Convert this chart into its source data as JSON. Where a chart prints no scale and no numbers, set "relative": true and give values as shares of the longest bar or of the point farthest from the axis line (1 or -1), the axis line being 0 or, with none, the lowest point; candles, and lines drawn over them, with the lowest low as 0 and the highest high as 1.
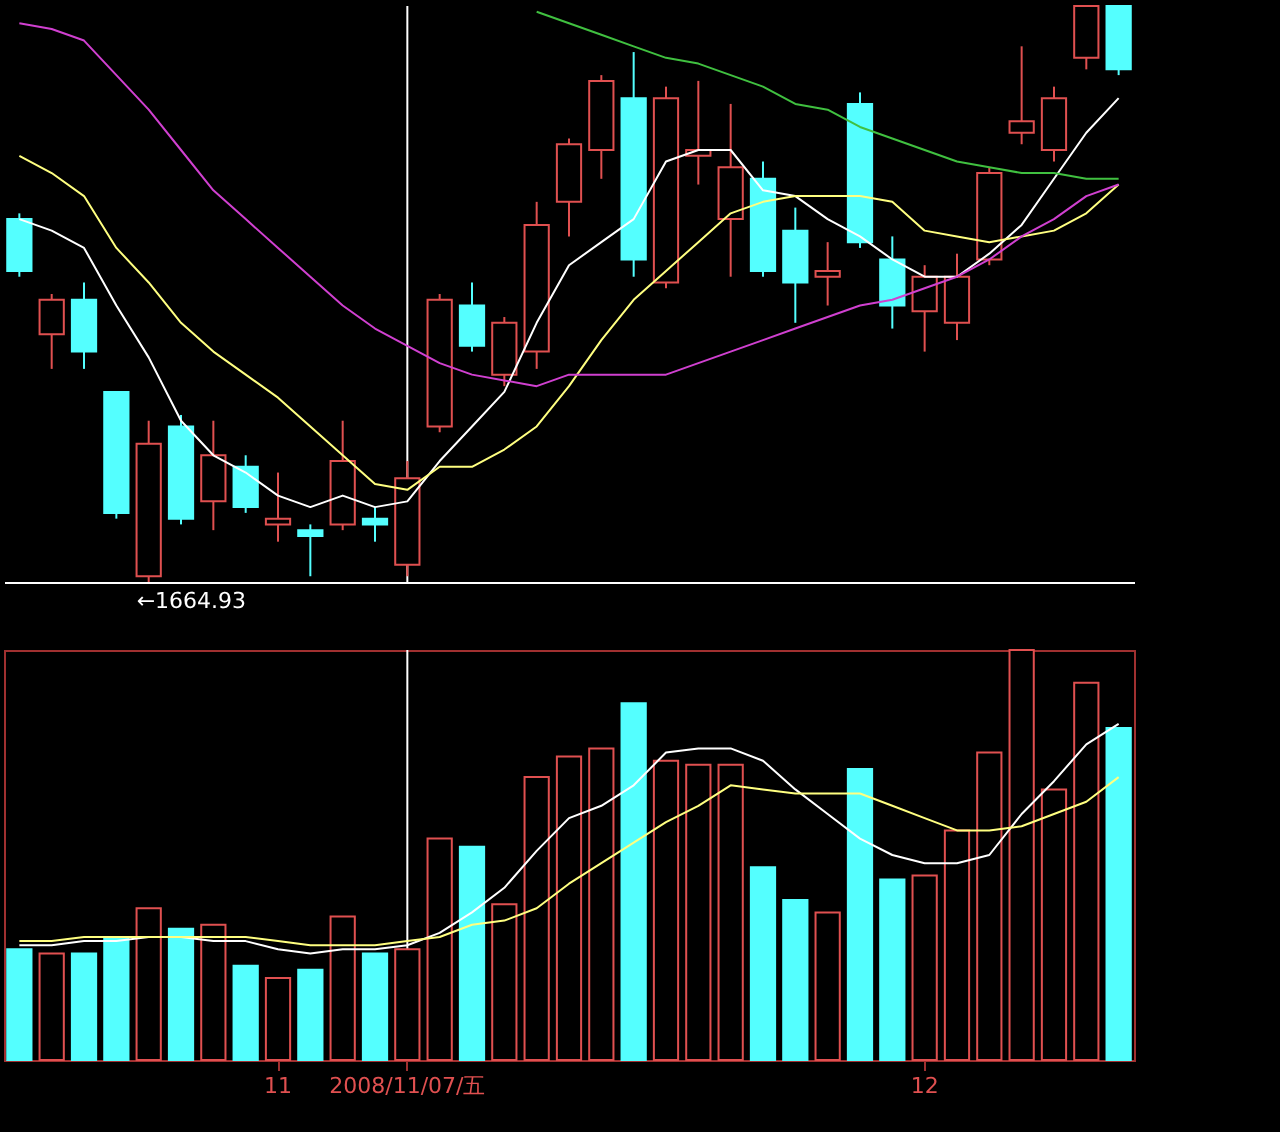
{
  "chart_data": [
    {
      "type": "candlestick",
      "relative": true,
      "tick_labels": false,
      "categories": [
        null,
        null,
        null,
        null,
        null,
        null,
        null,
        null,
        "11",
        null,
        null,
        null,
        "2008/11/07/五",
        null,
        null,
        null,
        null,
        null,
        null,
        null,
        null,
        null,
        null,
        null,
        null,
        null,
        null,
        null,
        "12",
        null,
        null,
        null,
        null,
        null,
        null
      ],
      "ohlc": [
        [
          0.63,
          0.64,
          0.53,
          0.54
        ],
        [
          0.43,
          0.5,
          0.37,
          0.49
        ],
        [
          0.49,
          0.52,
          0.37,
          0.4
        ],
        [
          0.33,
          0.33,
          0.11,
          0.12
        ],
        [
          0.01,
          0.28,
          0,
          0.24
        ],
        [
          0.27,
          0.29,
          0.1,
          0.11
        ],
        [
          0.14,
          0.28,
          0.09,
          0.22
        ],
        [
          0.2,
          0.22,
          0.12,
          0.13
        ],
        [
          0.1,
          0.19,
          0.07,
          0.11
        ],
        [
          0.09,
          0.1,
          0.01,
          0.08
        ],
        [
          0.1,
          0.28,
          0.09,
          0.21
        ],
        [
          0.11,
          0.13,
          0.07,
          0.1
        ],
        [
          0.03,
          0.21,
          0.01,
          0.18
        ],
        [
          0.27,
          0.5,
          0.26,
          0.49
        ],
        [
          0.48,
          0.52,
          0.4,
          0.41
        ],
        [
          0.36,
          0.46,
          0.34,
          0.45
        ],
        [
          0.4,
          0.66,
          0.37,
          0.62
        ],
        [
          0.66,
          0.77,
          0.6,
          0.76
        ],
        [
          0.75,
          0.88,
          0.7,
          0.87
        ],
        [
          0.84,
          0.92,
          0.53,
          0.56
        ],
        [
          0.52,
          0.86,
          0.51,
          0.84
        ],
        [
          0.74,
          0.87,
          0.69,
          0.75
        ],
        [
          0.63,
          0.83,
          0.53,
          0.72
        ],
        [
          0.7,
          0.73,
          0.53,
          0.54
        ],
        [
          0.61,
          0.65,
          0.45,
          0.52
        ],
        [
          0.53,
          0.59,
          0.48,
          0.54
        ],
        [
          0.83,
          0.85,
          0.58,
          0.59
        ],
        [
          0.56,
          0.6,
          0.44,
          0.48
        ],
        [
          0.47,
          0.55,
          0.4,
          0.53
        ],
        [
          0.45,
          0.57,
          0.42,
          0.53
        ],
        [
          0.56,
          0.72,
          0.55,
          0.71
        ],
        [
          0.78,
          0.93,
          0.76,
          0.8
        ],
        [
          0.75,
          0.86,
          0.73,
          0.84
        ],
        [
          0.91,
          1,
          0.89,
          1
        ],
        [
          1,
          1,
          0.88,
          0.89
        ]
      ],
      "colors": [
        "#54ffff",
        "#e05050",
        "#54ffff",
        "#54ffff",
        "#e05050",
        "#54ffff",
        "#e05050",
        "#54ffff",
        "#e05050",
        "#54ffff",
        "#e05050",
        "#54ffff",
        "#e05050",
        "#e05050",
        "#54ffff",
        "#e05050",
        "#e05050",
        "#e05050",
        "#e05050",
        "#54ffff",
        "#e05050",
        "#e05050",
        "#e05050",
        "#54ffff",
        "#54ffff",
        "#e05050",
        "#54ffff",
        "#54ffff",
        "#e05050",
        "#e05050",
        "#e05050",
        "#e05050",
        "#e05050",
        "#e05050",
        "#54ffff"
      ],
      "series": [
        {
          "type": "line",
          "color": "#ffffff",
          "values": [
            0.63,
            0.61,
            0.58,
            0.48,
            0.39,
            0.28,
            0.22,
            0.19,
            0.15,
            0.13,
            0.15,
            0.13,
            0.14,
            0.21,
            0.27,
            0.33,
            0.45,
            0.55,
            0.59,
            0.63,
            0.73,
            0.75,
            0.75,
            0.68,
            0.67,
            0.63,
            0.6,
            0.56,
            0.53,
            0.53,
            0.57,
            0.62,
            0.7,
            0.78,
            0.84
          ]
        },
        {
          "type": "line",
          "color": "#ffff80",
          "values": [
            0.74,
            0.71,
            0.67,
            0.58,
            0.52,
            0.45,
            0.4,
            0.36,
            0.32,
            0.27,
            0.22,
            0.17,
            0.16,
            0.2,
            0.2,
            0.23,
            0.27,
            0.34,
            0.42,
            0.49,
            0.54,
            0.59,
            0.64,
            0.66,
            0.67,
            0.67,
            0.67,
            0.66,
            0.61,
            0.6,
            0.59,
            0.6,
            0.61,
            0.64,
            0.69
          ]
        },
        {
          "type": "line",
          "color": "#d040d0",
          "values": [
            0.97,
            0.96,
            0.94,
            0.88,
            0.82,
            0.75,
            0.68,
            0.63,
            0.58,
            0.53,
            0.48,
            0.44,
            0.41,
            0.38,
            0.36,
            0.35,
            0.34,
            0.36,
            0.36,
            0.36,
            0.36,
            0.38,
            0.4,
            0.42,
            0.44,
            0.46,
            0.48,
            0.49,
            0.51,
            0.53,
            0.56,
            0.6,
            0.63,
            0.67,
            0.69
          ]
        },
        {
          "type": "line",
          "color": "#40c040",
          "values": [
            null,
            null,
            null,
            null,
            null,
            null,
            null,
            null,
            null,
            null,
            null,
            null,
            null,
            null,
            null,
            null,
            0.99,
            0.97,
            0.95,
            0.93,
            0.91,
            0.9,
            0.88,
            0.86,
            0.83,
            0.82,
            0.79,
            0.77,
            0.75,
            0.73,
            0.72,
            0.71,
            0.71,
            0.7,
            0.7
          ]
        }
      ],
      "ref_lines": [
        {
          "axis": "x",
          "value": "2008/11/07/五",
          "color": "#ffffff"
        }
      ],
      "annotations": [
        "←1664.93"
      ]
    },
    {
      "type": "bar",
      "relative": true,
      "tick_labels": "x",
      "categories": [
        null,
        null,
        null,
        null,
        null,
        null,
        null,
        null,
        "11",
        null,
        null,
        null,
        "2008/11/07/五",
        null,
        null,
        null,
        null,
        null,
        null,
        null,
        null,
        null,
        null,
        null,
        null,
        null,
        null,
        null,
        "12",
        null,
        null,
        null,
        null,
        null,
        null
      ],
      "values": [
        0.27,
        0.26,
        0.26,
        0.3,
        0.37,
        0.32,
        0.33,
        0.23,
        0.2,
        0.22,
        0.35,
        0.26,
        0.27,
        0.54,
        0.52,
        0.38,
        0.69,
        0.74,
        0.76,
        0.87,
        0.73,
        0.72,
        0.72,
        0.47,
        0.39,
        0.36,
        0.71,
        0.44,
        0.45,
        0.56,
        0.75,
        1,
        0.66,
        0.92,
        0.81
      ],
      "colors": [
        "#54ffff",
        "#e05050",
        "#54ffff",
        "#54ffff",
        "#e05050",
        "#54ffff",
        "#e05050",
        "#54ffff",
        "#e05050",
        "#54ffff",
        "#e05050",
        "#54ffff",
        "#e05050",
        "#e05050",
        "#54ffff",
        "#e05050",
        "#e05050",
        "#e05050",
        "#e05050",
        "#54ffff",
        "#e05050",
        "#e05050",
        "#e05050",
        "#54ffff",
        "#54ffff",
        "#e05050",
        "#54ffff",
        "#54ffff",
        "#e05050",
        "#e05050",
        "#e05050",
        "#e05050",
        "#e05050",
        "#e05050",
        "#54ffff"
      ],
      "series": [
        {
          "type": "line",
          "color": "#ffffff",
          "values": [
            0.28,
            0.28,
            0.29,
            0.29,
            0.3,
            0.3,
            0.29,
            0.29,
            0.27,
            0.26,
            0.27,
            0.27,
            0.28,
            0.31,
            0.36,
            0.42,
            0.51,
            0.59,
            0.62,
            0.67,
            0.75,
            0.76,
            0.76,
            0.73,
            0.66,
            0.6,
            0.54,
            0.5,
            0.48,
            0.48,
            0.5,
            0.6,
            0.68,
            0.77,
            0.82
          ]
        },
        {
          "type": "line",
          "color": "#ffff80",
          "values": [
            0.29,
            0.29,
            0.3,
            0.3,
            0.3,
            0.3,
            0.3,
            0.3,
            0.29,
            0.28,
            0.28,
            0.28,
            0.29,
            0.3,
            0.33,
            0.34,
            0.37,
            0.43,
            0.48,
            0.53,
            0.58,
            0.62,
            0.67,
            0.66,
            0.65,
            0.65,
            0.65,
            0.62,
            0.59,
            0.56,
            0.56,
            0.57,
            0.6,
            0.63,
            0.69
          ]
        }
      ],
      "ref_lines": [
        {
          "axis": "x",
          "value": "2008/11/07/五",
          "color": "#ffffff"
        }
      ]
    }
  ]
}
